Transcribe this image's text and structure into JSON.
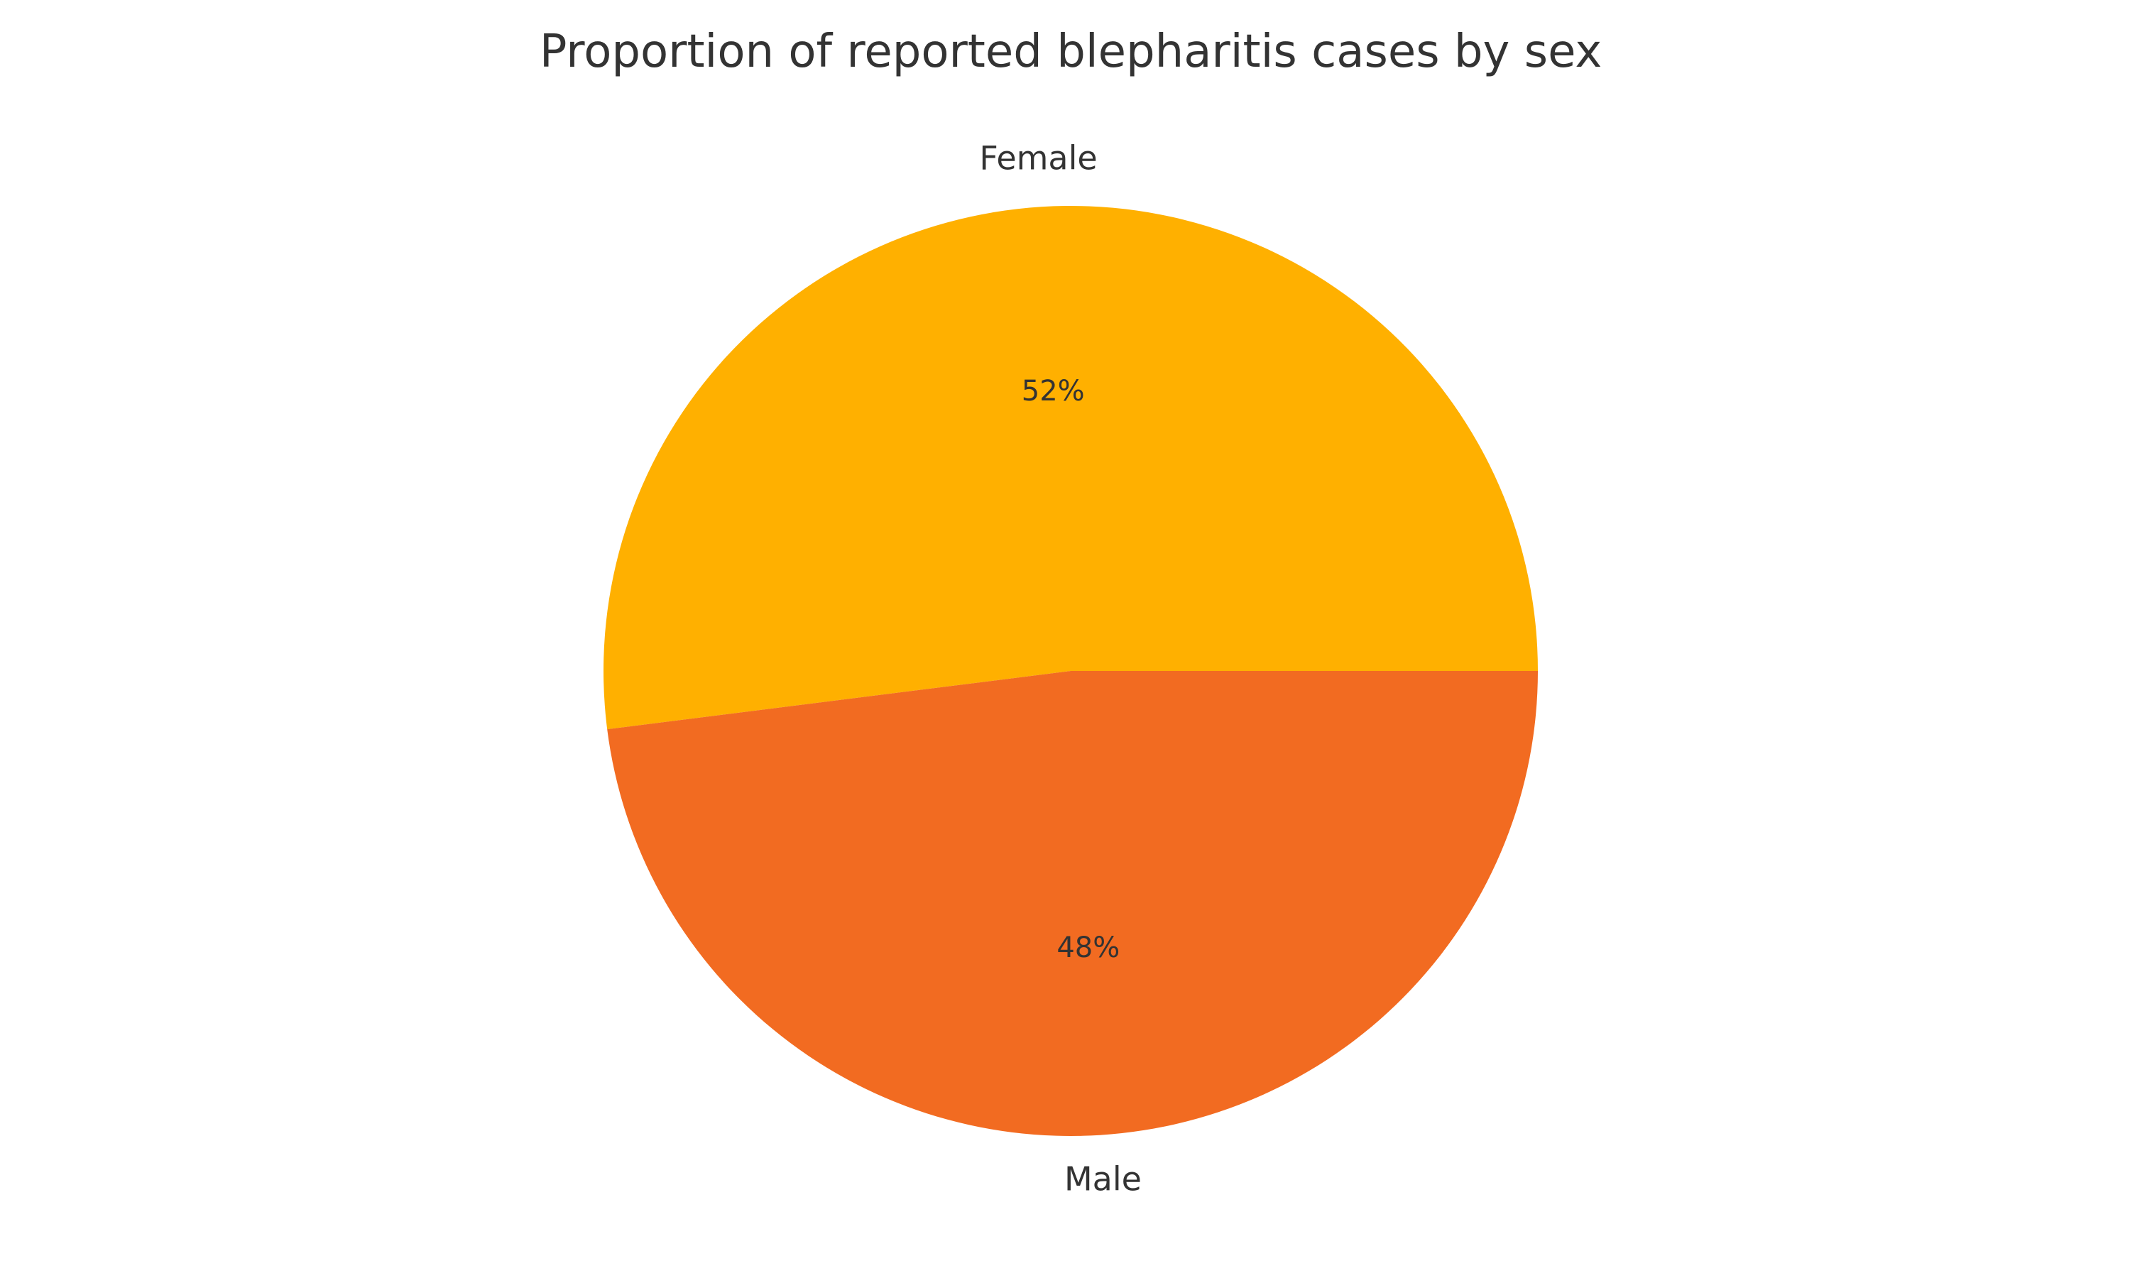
{
  "chart_data": {
    "type": "pie",
    "title": "Proportion of reported blepharitis cases by sex",
    "categories": [
      "Female",
      "Male"
    ],
    "values": [
      52,
      48
    ],
    "value_labels": [
      "52%",
      "48%"
    ],
    "colors": [
      "#FFB000",
      "#F26B21"
    ],
    "start_angle": "0 degrees (3 o'clock), counter-clockwise",
    "legend": "none",
    "grid": false
  }
}
